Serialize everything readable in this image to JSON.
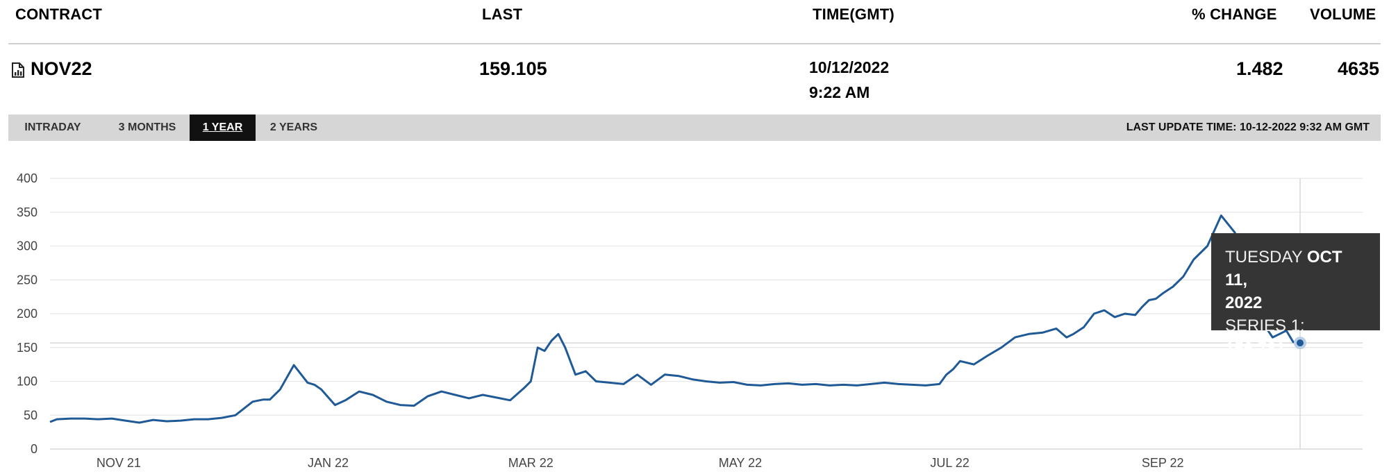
{
  "header": {
    "contract": "CONTRACT",
    "last": "LAST",
    "time": "TIME(GMT)",
    "change": "% CHANGE",
    "volume": "VOLUME"
  },
  "row": {
    "icon": "chart-document-icon",
    "contract": "NOV22",
    "last": "159.105",
    "date": "10/12/2022",
    "time": "9:22 AM",
    "change": "1.482",
    "volume": "4635"
  },
  "tabs": [
    {
      "label": "INTRADAY",
      "active": false
    },
    {
      "label": "3 MONTHS",
      "active": false
    },
    {
      "label": "1 YEAR",
      "active": true
    },
    {
      "label": "2 YEARS",
      "active": false
    }
  ],
  "last_update": "LAST UPDATE TIME: 10-12-2022 9:32 AM GMT",
  "tooltip": {
    "day": "TUESDAY",
    "date_bold": "OCT 11,",
    "year": "2022",
    "series_label": "SERIES 1:",
    "series_value": "156.781"
  },
  "colors": {
    "line": "#1f5a96",
    "grid": "#e6e6e6",
    "tooltip_bg": "#353535",
    "active_tab": "#111111"
  },
  "chart_data": {
    "type": "line",
    "x_start": "2021-10-12",
    "x_end": "2022-10-11",
    "ylim": [
      0,
      400
    ],
    "yticks": [
      0,
      50,
      100,
      150,
      200,
      250,
      300,
      350,
      400
    ],
    "xticks": [
      {
        "label": "NOV 21",
        "date": "2021-11-01"
      },
      {
        "label": "JAN 22",
        "date": "2022-01-01"
      },
      {
        "label": "MAR 22",
        "date": "2022-03-01"
      },
      {
        "label": "MAY 22",
        "date": "2022-05-01"
      },
      {
        "label": "JUL 22",
        "date": "2022-07-01"
      },
      {
        "label": "SEP 22",
        "date": "2022-09-01"
      }
    ],
    "grid": true,
    "series": [
      {
        "x": [
          "2021-10-12",
          "2021-10-14",
          "2021-10-18",
          "2021-10-22",
          "2021-10-26",
          "2021-10-30",
          "2021-11-03",
          "2021-11-07",
          "2021-11-11",
          "2021-11-15",
          "2021-11-19",
          "2021-11-23",
          "2021-11-27",
          "2021-12-01",
          "2021-12-05",
          "2021-12-08",
          "2021-12-10",
          "2021-12-13",
          "2021-12-15",
          "2021-12-18",
          "2021-12-22",
          "2021-12-26",
          "2021-12-28",
          "2021-12-30",
          "2022-01-03",
          "2022-01-06",
          "2022-01-10",
          "2022-01-14",
          "2022-01-18",
          "2022-01-22",
          "2022-01-26",
          "2022-01-30",
          "2022-02-03",
          "2022-02-07",
          "2022-02-11",
          "2022-02-15",
          "2022-02-19",
          "2022-02-23",
          "2022-02-27",
          "2022-03-01",
          "2022-03-03",
          "2022-03-05",
          "2022-03-07",
          "2022-03-09",
          "2022-03-11",
          "2022-03-14",
          "2022-03-17",
          "2022-03-20",
          "2022-03-24",
          "2022-03-28",
          "2022-04-01",
          "2022-04-05",
          "2022-04-09",
          "2022-04-13",
          "2022-04-17",
          "2022-04-21",
          "2022-04-25",
          "2022-04-29",
          "2022-05-03",
          "2022-05-07",
          "2022-05-11",
          "2022-05-15",
          "2022-05-19",
          "2022-05-23",
          "2022-05-27",
          "2022-05-31",
          "2022-06-04",
          "2022-06-08",
          "2022-06-12",
          "2022-06-16",
          "2022-06-20",
          "2022-06-24",
          "2022-06-28",
          "2022-06-30",
          "2022-07-02",
          "2022-07-04",
          "2022-07-08",
          "2022-07-12",
          "2022-07-16",
          "2022-07-20",
          "2022-07-24",
          "2022-07-28",
          "2022-08-01",
          "2022-08-04",
          "2022-08-06",
          "2022-08-09",
          "2022-08-12",
          "2022-08-15",
          "2022-08-18",
          "2022-08-21",
          "2022-08-24",
          "2022-08-26",
          "2022-08-28",
          "2022-08-30",
          "2022-09-01",
          "2022-09-04",
          "2022-09-07",
          "2022-09-10",
          "2022-09-14",
          "2022-09-18",
          "2022-09-22",
          "2022-09-26",
          "2022-09-29",
          "2022-10-01",
          "2022-10-03",
          "2022-10-05",
          "2022-10-07",
          "2022-10-09",
          "2022-10-11"
        ],
        "y": [
          40,
          44,
          45,
          45,
          44,
          45,
          42,
          39,
          43,
          41,
          42,
          44,
          44,
          46,
          50,
          62,
          70,
          73,
          73,
          88,
          124,
          98,
          95,
          88,
          65,
          72,
          85,
          80,
          70,
          65,
          64,
          78,
          85,
          80,
          75,
          80,
          76,
          72,
          90,
          100,
          150,
          145,
          160,
          170,
          150,
          110,
          115,
          100,
          98,
          96,
          110,
          95,
          110,
          108,
          103,
          100,
          98,
          99,
          95,
          94,
          96,
          97,
          95,
          96,
          94,
          95,
          94,
          96,
          98,
          96,
          95,
          94,
          96,
          110,
          118,
          130,
          125,
          138,
          150,
          165,
          170,
          172,
          178,
          165,
          170,
          180,
          200,
          205,
          195,
          200,
          198,
          210,
          220,
          222,
          230,
          240,
          255,
          280,
          300,
          345,
          320,
          255,
          210,
          180,
          165,
          170,
          175,
          158,
          156.781
        ]
      }
    ]
  }
}
